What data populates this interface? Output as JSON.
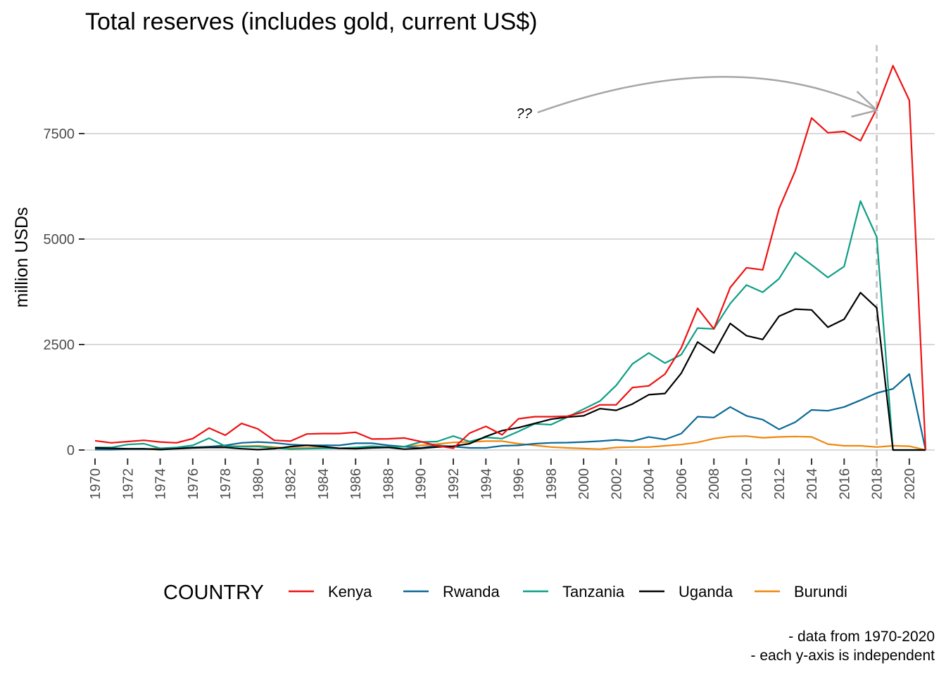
{
  "chart_data": {
    "type": "line",
    "title": "Total reserves (includes gold, current US$)",
    "xlabel": "",
    "ylabel": "million USDs",
    "xlim": [
      1970,
      2021
    ],
    "ylim": [
      0,
      9100
    ],
    "yticks": [
      0,
      2500,
      5000,
      7500
    ],
    "xticks": [
      1970,
      1972,
      1974,
      1976,
      1978,
      1980,
      1982,
      1984,
      1986,
      1988,
      1990,
      1992,
      1994,
      1996,
      1998,
      2000,
      2002,
      2004,
      2006,
      2008,
      2010,
      2012,
      2014,
      2016,
      2018,
      2020
    ],
    "grid": true,
    "legend_title": "COUNTRY",
    "legend_position": "bottom",
    "reference_line": {
      "x": 2018,
      "style": "dashed",
      "color": "#bfbfbf"
    },
    "annotation": {
      "text": "??",
      "arrow_to": {
        "x": 2018,
        "y": 8050
      },
      "arrow_from": {
        "x": 1997,
        "y": 8000
      },
      "color": "#a6a6a6"
    },
    "caption_lines": [
      "- data from 1970-2020",
      "- each y-axis is independent"
    ],
    "x": [
      1970,
      1971,
      1972,
      1973,
      1974,
      1975,
      1976,
      1977,
      1978,
      1979,
      1980,
      1981,
      1982,
      1983,
      1984,
      1985,
      1986,
      1987,
      1988,
      1989,
      1990,
      1991,
      1992,
      1993,
      1994,
      1995,
      1996,
      1997,
      1998,
      1999,
      2000,
      2001,
      2002,
      2003,
      2004,
      2005,
      2006,
      2007,
      2008,
      2009,
      2010,
      2011,
      2012,
      2013,
      2014,
      2015,
      2016,
      2017,
      2018,
      2019,
      2020,
      2021
    ],
    "series": [
      {
        "name": "Kenya",
        "color": "#ee1111",
        "values": [
          220,
          170,
          200,
          230,
          190,
          170,
          270,
          520,
          350,
          630,
          500,
          230,
          210,
          380,
          390,
          390,
          420,
          260,
          265,
          285,
          200,
          100,
          40,
          400,
          560,
          360,
          740,
          790,
          790,
          800,
          900,
          1070,
          1070,
          1480,
          1520,
          1800,
          2420,
          3360,
          2870,
          3850,
          4320,
          4270,
          5720,
          6620,
          7870,
          7520,
          7550,
          7330,
          8090,
          9110,
          8290,
          0
        ]
      },
      {
        "name": "Rwanda",
        "color": "#0a6897",
        "values": [
          10,
          10,
          20,
          20,
          20,
          40,
          60,
          80,
          110,
          170,
          190,
          170,
          130,
          110,
          110,
          110,
          160,
          160,
          110,
          80,
          50,
          110,
          80,
          50,
          50,
          100,
          110,
          150,
          170,
          175,
          190,
          210,
          240,
          210,
          310,
          250,
          390,
          790,
          770,
          1020,
          810,
          720,
          490,
          660,
          950,
          930,
          1020,
          1180,
          1350,
          1450,
          1800,
          0
        ]
      },
      {
        "name": "Tanzania",
        "color": "#0d9e85",
        "values": [
          60,
          60,
          130,
          150,
          40,
          60,
          110,
          280,
          90,
          80,
          80,
          50,
          20,
          30,
          40,
          40,
          60,
          90,
          70,
          80,
          190,
          200,
          330,
          200,
          300,
          270,
          440,
          620,
          600,
          780,
          970,
          1160,
          1530,
          2040,
          2300,
          2060,
          2260,
          2890,
          2870,
          3470,
          3910,
          3740,
          4060,
          4680,
          4390,
          4090,
          4350,
          5900,
          5050,
          0,
          0,
          0
        ]
      },
      {
        "name": "Uganda",
        "color": "#000000",
        "values": [
          50,
          40,
          30,
          30,
          10,
          30,
          50,
          60,
          60,
          30,
          10,
          30,
          80,
          110,
          80,
          40,
          30,
          50,
          60,
          20,
          40,
          70,
          90,
          150,
          320,
          460,
          530,
          630,
          730,
          780,
          810,
          980,
          940,
          1090,
          1310,
          1340,
          1820,
          2560,
          2300,
          3000,
          2710,
          2620,
          3170,
          3340,
          3320,
          2910,
          3100,
          3730,
          3370,
          0,
          0,
          0
        ]
      },
      {
        "name": "Burundi",
        "color": "#f0870b",
        "values": [
          20,
          20,
          20,
          20,
          40,
          40,
          60,
          80,
          90,
          90,
          100,
          70,
          40,
          50,
          50,
          40,
          60,
          60,
          60,
          80,
          110,
          140,
          180,
          190,
          210,
          210,
          150,
          110,
          70,
          50,
          35,
          20,
          60,
          70,
          70,
          100,
          130,
          180,
          270,
          320,
          330,
          290,
          310,
          320,
          310,
          140,
          100,
          100,
          70,
          100,
          90,
          0
        ]
      }
    ]
  }
}
